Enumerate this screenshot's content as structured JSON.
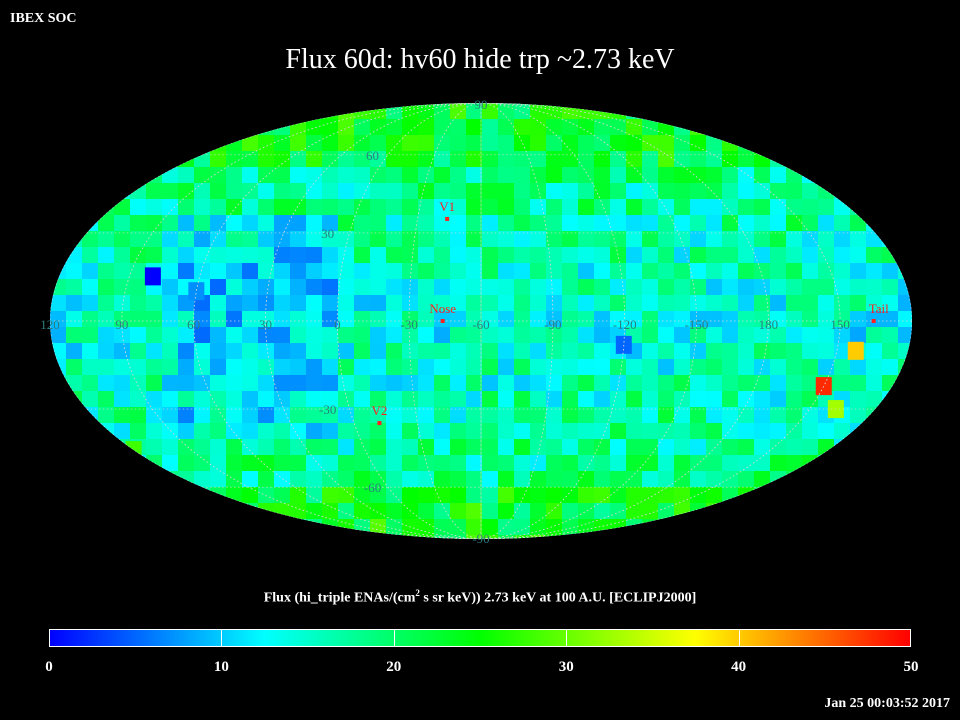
{
  "header": "IBEX SOC",
  "title": "Flux   60d: hv60 hide trp ~2.73 keV",
  "colorbar": {
    "title_pre": "Flux (hi_triple ENAs/(cm",
    "title_sup": "2",
    "title_post": " s sr keV))  2.73 keV at 100 A.U. [ECLIPJ2000]",
    "range": [
      0,
      50
    ],
    "ticks": [
      "0",
      "10",
      "20",
      "30",
      "40",
      "50"
    ],
    "colors": [
      "#0000ff",
      "#00ffff",
      "#00ff00",
      "#ffff00",
      "#ff0000"
    ]
  },
  "timestamp": "Jan 25 00:03:52 2017",
  "map": {
    "projection": "mollweide",
    "center_lon": 60,
    "lat_labels": [
      "90",
      "60",
      "30",
      "-30",
      "-60",
      "-90"
    ],
    "lon_labels": [
      "60",
      "30",
      "0",
      "-30",
      "-60",
      "-90",
      "-120",
      "-150",
      "180",
      "150",
      "120",
      "90"
    ],
    "markers": [
      {
        "label": "V1",
        "lon": 76,
        "lat": 35,
        "color": "#ff2020"
      },
      {
        "label": "Nose",
        "lon": 76,
        "lat": 0,
        "color": "#ff2020"
      },
      {
        "label": "V2",
        "lon": 108,
        "lat": -35,
        "color": "#ff2020"
      },
      {
        "label": "Tail",
        "lon": 256,
        "lat": 0,
        "color": "#ff2020"
      }
    ],
    "flux_typical": 14,
    "flux_features": [
      {
        "lon": 0,
        "lat": -8,
        "value": 5
      },
      {
        "lon": 180,
        "lat": 10,
        "value": 7
      },
      {
        "lon": 240,
        "lat": -45,
        "value": 28
      },
      {
        "lon": 258,
        "lat": -30,
        "value": 33
      },
      {
        "lon": 270,
        "lat": -22,
        "value": 48
      },
      {
        "lon": 262,
        "lat": -10,
        "value": 40
      },
      {
        "lon": 200,
        "lat": 15,
        "value": 0
      }
    ]
  }
}
